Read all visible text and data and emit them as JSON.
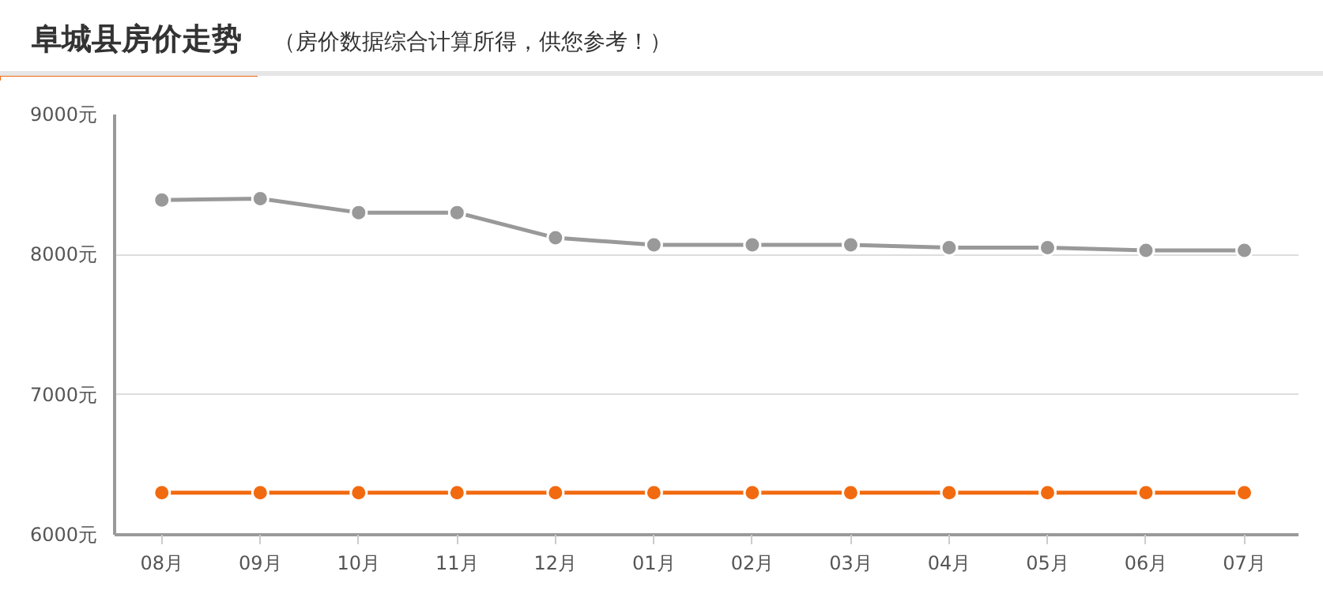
{
  "chart_data": {
    "type": "line",
    "title": "阜城县房价走势",
    "subtitle": "（房价数据综合计算所得，供您参考！）",
    "categories": [
      "08月",
      "09月",
      "10月",
      "11月",
      "12月",
      "01月",
      "02月",
      "03月",
      "04月",
      "05月",
      "06月",
      "07月"
    ],
    "series": [
      {
        "color": "#999999",
        "values": [
          8390,
          8400,
          8300,
          8300,
          8120,
          8070,
          8070,
          8070,
          8050,
          8050,
          8030,
          8030
        ]
      },
      {
        "color": "#f26a10",
        "values": [
          6300,
          6300,
          6300,
          6300,
          6300,
          6300,
          6300,
          6300,
          6300,
          6300,
          6300,
          6300
        ]
      }
    ],
    "ylim": [
      6000,
      9000
    ],
    "yticks": [
      {
        "value": 6000,
        "label": "6000元"
      },
      {
        "value": 7000,
        "label": "7000元"
      },
      {
        "value": 8000,
        "label": "8000元"
      },
      {
        "value": 9000,
        "label": "9000元"
      }
    ],
    "grid": "y",
    "marker": "circle",
    "line_style": "solid"
  }
}
